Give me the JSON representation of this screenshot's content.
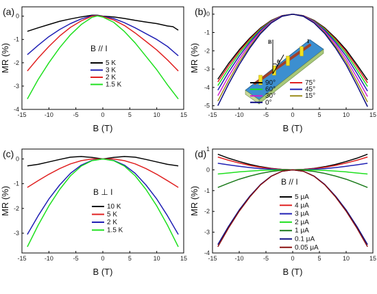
{
  "chart_data": [
    {
      "panel": "(a)",
      "type": "line",
      "xlabel": "B (T)",
      "ylabel": "MR (%)",
      "xlim": [
        -15,
        15
      ],
      "ylim": [
        -4,
        0.4
      ],
      "xticks": [
        -15,
        -10,
        -5,
        0,
        5,
        10,
        15
      ],
      "yticks": [
        -4,
        -3,
        -2,
        -1,
        0
      ],
      "annotation": "B // I",
      "legend_position": "center-right",
      "series": [
        {
          "name": "5 K",
          "color": "#000000",
          "x": [
            -14,
            -12,
            -10,
            -8,
            -6,
            -4,
            -2,
            -1,
            0,
            2,
            4,
            6,
            8,
            10,
            12,
            13,
            14
          ],
          "y": [
            -0.65,
            -0.5,
            -0.36,
            -0.22,
            -0.12,
            -0.03,
            0.04,
            0.04,
            0.0,
            -0.03,
            -0.1,
            -0.18,
            -0.25,
            -0.32,
            -0.42,
            -0.45,
            -0.6
          ]
        },
        {
          "name": "3 K",
          "color": "#1f1fb4",
          "x": [
            -14,
            -12,
            -10,
            -8,
            -6,
            -4,
            -2,
            -1,
            0,
            2,
            4,
            6,
            8,
            10,
            12,
            14
          ],
          "y": [
            -1.65,
            -1.25,
            -0.88,
            -0.57,
            -0.32,
            -0.12,
            0.02,
            0.03,
            -0.01,
            -0.1,
            -0.28,
            -0.5,
            -0.75,
            -1.0,
            -1.3,
            -1.7
          ]
        },
        {
          "name": "2 K",
          "color": "#e02020",
          "x": [
            -14,
            -12,
            -10,
            -8,
            -6,
            -4,
            -2,
            -1,
            0,
            2,
            4,
            6,
            8,
            10,
            12,
            14
          ],
          "y": [
            -2.35,
            -1.8,
            -1.3,
            -0.85,
            -0.48,
            -0.2,
            0.0,
            0.02,
            -0.02,
            -0.16,
            -0.4,
            -0.72,
            -1.08,
            -1.45,
            -1.88,
            -2.35
          ]
        },
        {
          "name": "1.5 K",
          "color": "#1ee01e",
          "x": [
            -14,
            -12,
            -10,
            -8,
            -6,
            -4,
            -2,
            -1,
            0,
            2,
            4,
            6,
            8,
            10,
            12,
            14
          ],
          "y": [
            -3.55,
            -2.72,
            -2.0,
            -1.35,
            -0.8,
            -0.36,
            -0.05,
            0.01,
            -0.04,
            -0.26,
            -0.66,
            -1.15,
            -1.72,
            -2.3,
            -2.95,
            -3.55
          ]
        }
      ]
    },
    {
      "panel": "(b)",
      "type": "line",
      "xlabel": "B (T)",
      "ylabel": "MR (%)",
      "xlim": [
        -15,
        15
      ],
      "ylim": [
        -5.2,
        0.4
      ],
      "xticks": [
        -15,
        -10,
        -5,
        0,
        5,
        10,
        15
      ],
      "yticks": [
        -5,
        -4,
        -3,
        -2,
        -1,
        0
      ],
      "legend_position": "lower-right",
      "inset_labels": {
        "field": "B",
        "angle": "θ",
        "current": "I"
      },
      "series": [
        {
          "name": "90°",
          "color": "#000000",
          "x": [
            -14,
            -12,
            -10,
            -8,
            -6,
            -4,
            -2,
            0,
            2,
            4,
            6,
            8,
            10,
            12,
            14
          ],
          "y": [
            -3.55,
            -2.7,
            -1.95,
            -1.3,
            -0.75,
            -0.34,
            -0.08,
            0.0,
            -0.08,
            -0.34,
            -0.75,
            -1.3,
            -1.95,
            -2.75,
            -3.6
          ]
        },
        {
          "name": "75°",
          "color": "#e02020",
          "x": [
            -14,
            -12,
            -10,
            -8,
            -6,
            -4,
            -2,
            0,
            2,
            4,
            6,
            8,
            10,
            12,
            14
          ],
          "y": [
            -3.7,
            -2.82,
            -2.04,
            -1.36,
            -0.79,
            -0.36,
            -0.09,
            0.0,
            -0.09,
            -0.36,
            -0.79,
            -1.36,
            -2.04,
            -2.87,
            -3.75
          ]
        },
        {
          "name": "60°",
          "color": "#1ee01e",
          "x": [
            -14,
            -12,
            -10,
            -8,
            -6,
            -4,
            -2,
            0,
            2,
            4,
            6,
            8,
            10,
            12,
            14
          ],
          "y": [
            -3.9,
            -2.98,
            -2.15,
            -1.44,
            -0.83,
            -0.38,
            -0.1,
            0.0,
            -0.1,
            -0.38,
            -0.83,
            -1.44,
            -2.15,
            -3.03,
            -3.95
          ]
        },
        {
          "name": "45°",
          "color": "#1f1fb4",
          "x": [
            -14,
            -12,
            -10,
            -8,
            -6,
            -4,
            -2,
            0,
            2,
            4,
            6,
            8,
            10,
            12,
            14
          ],
          "y": [
            -4.15,
            -3.17,
            -2.29,
            -1.53,
            -0.88,
            -0.4,
            -0.1,
            0.0,
            -0.1,
            -0.4,
            -0.88,
            -1.53,
            -2.29,
            -3.22,
            -4.2
          ]
        },
        {
          "name": "30°",
          "color": "#d020d0",
          "x": [
            -14,
            -12,
            -10,
            -8,
            -6,
            -4,
            -2,
            0,
            2,
            4,
            6,
            8,
            10,
            12,
            14
          ],
          "y": [
            -4.45,
            -3.4,
            -2.46,
            -1.64,
            -0.95,
            -0.43,
            -0.11,
            0.0,
            -0.11,
            -0.43,
            -0.95,
            -1.64,
            -2.46,
            -3.45,
            -4.5
          ]
        },
        {
          "name": "15°",
          "color": "#9a8a18",
          "x": [
            -14,
            -12,
            -10,
            -8,
            -6,
            -4,
            -2,
            0,
            2,
            4,
            6,
            8,
            10,
            12,
            14
          ],
          "y": [
            -4.75,
            -3.63,
            -2.62,
            -1.75,
            -1.01,
            -0.46,
            -0.12,
            0.0,
            -0.12,
            -0.46,
            -1.01,
            -1.75,
            -2.62,
            -3.68,
            -4.8
          ]
        },
        {
          "name": "0°",
          "color": "#0a0a80",
          "x": [
            -14,
            -12,
            -10,
            -8,
            -6,
            -4,
            -2,
            0,
            2,
            4,
            6,
            8,
            10,
            12,
            14
          ],
          "y": [
            -5.0,
            -3.82,
            -2.76,
            -1.84,
            -1.06,
            -0.48,
            -0.12,
            0.0,
            -0.12,
            -0.48,
            -1.06,
            -1.84,
            -2.76,
            -3.87,
            -5.05
          ]
        }
      ]
    },
    {
      "panel": "(c)",
      "type": "line",
      "xlabel": "B (T)",
      "ylabel": "MR (%)",
      "xlim": [
        -15,
        15
      ],
      "ylim": [
        -3.8,
        0.4
      ],
      "xticks": [
        -15,
        -10,
        -5,
        0,
        5,
        10,
        15
      ],
      "yticks": [
        -3,
        -2,
        -1,
        0
      ],
      "annotation": "B ⊥ I",
      "legend_position": "center-right",
      "series": [
        {
          "name": "10 K",
          "color": "#000000",
          "x": [
            -14,
            -12,
            -10,
            -8,
            -6,
            -4,
            -2,
            0,
            2,
            4,
            6,
            8,
            10,
            12,
            14
          ],
          "y": [
            -0.28,
            -0.22,
            -0.12,
            -0.02,
            0.07,
            0.1,
            0.06,
            0.0,
            0.06,
            0.1,
            0.07,
            -0.02,
            -0.12,
            -0.22,
            -0.28
          ]
        },
        {
          "name": "5 K",
          "color": "#e02020",
          "x": [
            -14,
            -12,
            -10,
            -8,
            -6,
            -4,
            -2,
            0,
            2,
            4,
            6,
            8,
            10,
            12,
            14
          ],
          "y": [
            -1.15,
            -0.88,
            -0.62,
            -0.39,
            -0.2,
            -0.07,
            0.0,
            0.0,
            0.0,
            -0.07,
            -0.2,
            -0.39,
            -0.62,
            -0.88,
            -1.15
          ]
        },
        {
          "name": "2 K",
          "color": "#1f1fb4",
          "x": [
            -14,
            -12,
            -10,
            -8,
            -6,
            -4,
            -2,
            0,
            2,
            4,
            6,
            8,
            10,
            12,
            14
          ],
          "y": [
            -3.05,
            -2.3,
            -1.62,
            -1.05,
            -0.58,
            -0.25,
            -0.06,
            0.0,
            -0.06,
            -0.25,
            -0.58,
            -1.05,
            -1.62,
            -2.3,
            -3.05
          ]
        },
        {
          "name": "1.5 K",
          "color": "#1ee01e",
          "x": [
            -14,
            -12,
            -10,
            -8,
            -6,
            -4,
            -2,
            0,
            2,
            4,
            6,
            8,
            10,
            12,
            14
          ],
          "y": [
            -3.55,
            -2.68,
            -1.9,
            -1.23,
            -0.68,
            -0.29,
            -0.07,
            0.0,
            -0.07,
            -0.29,
            -0.68,
            -1.23,
            -1.9,
            -2.68,
            -3.55
          ]
        }
      ]
    },
    {
      "panel": "(d)",
      "type": "line",
      "xlabel": "B (T)",
      "ylabel": "MR (%)",
      "xlim": [
        -15,
        15
      ],
      "ylim": [
        -4,
        1
      ],
      "xticks": [
        -15,
        -10,
        -5,
        0,
        5,
        10,
        15
      ],
      "yticks": [
        -4,
        -3,
        -2,
        -1,
        0,
        1
      ],
      "annotation": "B // I",
      "legend_position": "center",
      "series": [
        {
          "name": "5 μA",
          "color": "#000000",
          "x": [
            -14,
            -12,
            -10,
            -8,
            -6,
            -4,
            -2,
            0,
            2,
            4,
            6,
            8,
            10,
            12,
            14
          ],
          "y": [
            0.75,
            0.56,
            0.4,
            0.26,
            0.15,
            0.07,
            0.02,
            0.0,
            0.02,
            0.07,
            0.15,
            0.26,
            0.4,
            0.56,
            0.75
          ]
        },
        {
          "name": "4 μA",
          "color": "#e02020",
          "x": [
            -14,
            -12,
            -10,
            -8,
            -6,
            -4,
            -2,
            0,
            2,
            4,
            6,
            8,
            10,
            12,
            14
          ],
          "y": [
            0.62,
            0.46,
            0.33,
            0.21,
            0.12,
            0.06,
            0.02,
            0.0,
            0.02,
            0.06,
            0.12,
            0.21,
            0.33,
            0.46,
            0.62
          ]
        },
        {
          "name": "3 μA",
          "color": "#1f1fb4",
          "x": [
            -14,
            -12,
            -10,
            -8,
            -6,
            -4,
            -2,
            0,
            2,
            4,
            6,
            8,
            10,
            12,
            14
          ],
          "y": [
            0.32,
            0.24,
            0.17,
            0.11,
            0.06,
            0.03,
            0.01,
            0.0,
            0.01,
            0.03,
            0.06,
            0.11,
            0.17,
            0.24,
            0.32
          ]
        },
        {
          "name": "2 μA",
          "color": "#1ee01e",
          "x": [
            -14,
            -12,
            -10,
            -8,
            -6,
            -4,
            -2,
            0,
            2,
            4,
            6,
            8,
            10,
            12,
            14
          ],
          "y": [
            -0.2,
            -0.15,
            -0.1,
            -0.06,
            -0.03,
            -0.01,
            0.0,
            0.0,
            0.0,
            -0.01,
            -0.03,
            -0.06,
            -0.1,
            -0.15,
            -0.2
          ]
        },
        {
          "name": "1 μA",
          "color": "#1a7a1a",
          "x": [
            -14,
            -12,
            -10,
            -8,
            -6,
            -4,
            -2,
            0,
            2,
            4,
            6,
            8,
            10,
            12,
            14
          ],
          "y": [
            -0.85,
            -0.64,
            -0.45,
            -0.3,
            -0.17,
            -0.08,
            -0.02,
            0.0,
            -0.02,
            -0.08,
            -0.17,
            -0.3,
            -0.45,
            -0.64,
            -0.85
          ]
        },
        {
          "name": "0.1 μA",
          "color": "#0a0a80",
          "x": [
            -14,
            -12,
            -10,
            -8,
            -6,
            -4,
            -2,
            0,
            2,
            4,
            6,
            8,
            10,
            12,
            14
          ],
          "y": [
            -3.6,
            -2.72,
            -1.93,
            -1.26,
            -0.7,
            -0.3,
            -0.07,
            0.0,
            -0.07,
            -0.3,
            -0.7,
            -1.26,
            -1.93,
            -2.72,
            -3.6
          ]
        },
        {
          "name": "0.05 μA",
          "color": "#8a1010",
          "x": [
            -14,
            -12,
            -10,
            -8,
            -6,
            -4,
            -2,
            0,
            2,
            4,
            6,
            8,
            10,
            12,
            14
          ],
          "y": [
            -3.7,
            -2.8,
            -1.99,
            -1.3,
            -0.72,
            -0.31,
            -0.07,
            0.0,
            -0.07,
            -0.31,
            -0.72,
            -1.3,
            -1.99,
            -2.8,
            -3.7
          ]
        }
      ]
    }
  ]
}
